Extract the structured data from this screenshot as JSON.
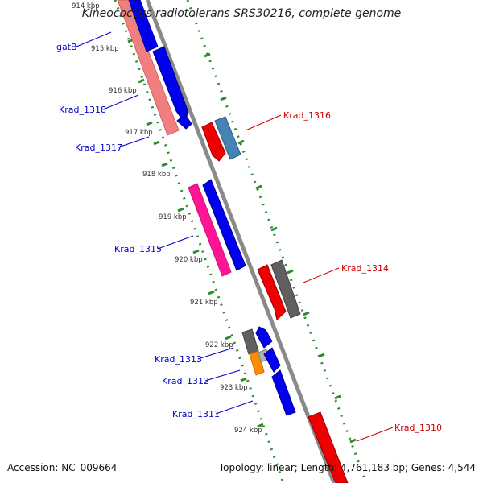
{
  "title": "Kineococcus radiotolerans SRS30216, complete genome",
  "accession_text": "Accession: NC_009664",
  "summary_text": "Topology: linear; Length: 4,761,183 bp; Genes: 4,544",
  "colors": {
    "backbone": "#8a8a8a",
    "tick": "#2e8b2e",
    "label_left": "#0000cc",
    "label_right": "#cc0000",
    "gene_blue": "#0000ee",
    "gene_red": "#ee0000",
    "gene_gray": "#606060",
    "gene_steel": "#4682b4",
    "gene_pink": "#ff1493",
    "gene_salmon": "#f08080",
    "gene_orange": "#ff8c00"
  },
  "kbp_labels": [
    "914 kbp",
    "915 kbp",
    "916 kbp",
    "917 kbp",
    "918 kbp",
    "919 kbp",
    "920 kbp",
    "921 kbp",
    "922 kbp",
    "923 kbp",
    "924 kbp"
  ],
  "gene_labels": [
    {
      "id": "gatB",
      "text": "gatB",
      "side": "left"
    },
    {
      "id": "Krad_1318",
      "text": "Krad_1318",
      "side": "left"
    },
    {
      "id": "Krad_1317",
      "text": "Krad_1317",
      "side": "left"
    },
    {
      "id": "Krad_1316",
      "text": "Krad_1316",
      "side": "right"
    },
    {
      "id": "Krad_1315",
      "text": "Krad_1315",
      "side": "left"
    },
    {
      "id": "Krad_1314",
      "text": "Krad_1314",
      "side": "right"
    },
    {
      "id": "Krad_1313",
      "text": "Krad_1313",
      "side": "left"
    },
    {
      "id": "Krad_1312",
      "text": "Krad_1312",
      "side": "left"
    },
    {
      "id": "Krad_1311",
      "text": "Krad_1311",
      "side": "left"
    },
    {
      "id": "Krad_1310",
      "text": "Krad_1310",
      "side": "right"
    }
  ]
}
